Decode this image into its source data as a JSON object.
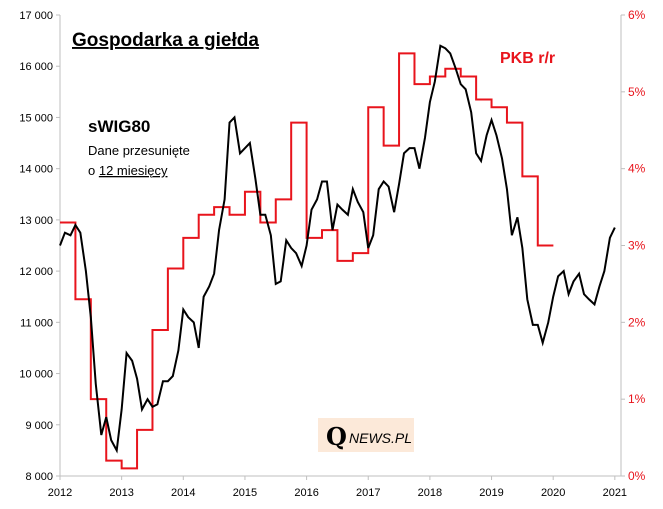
{
  "chart_data": {
    "type": "line",
    "title": "Gospodarka a giełda",
    "x_ticks": [
      "2012",
      "2013",
      "2014",
      "2015",
      "2016",
      "2017",
      "2018",
      "2019",
      "2020",
      "2021"
    ],
    "y_left": {
      "range": [
        8000,
        17000
      ],
      "ticks": [
        "8 000",
        "9 000",
        "10 000",
        "11 000",
        "12 000",
        "13 000",
        "14 000",
        "15 000",
        "16 000",
        "17 000"
      ]
    },
    "y_right": {
      "range": [
        0,
        6
      ],
      "ticks": [
        "0%",
        "1%",
        "2%",
        "3%",
        "4%",
        "5%",
        "6%"
      ]
    },
    "grid": false,
    "series": [
      {
        "name": "sWIG80",
        "axis": "left",
        "color": "#000000",
        "note": "Dane przesunięte o 12 miesięcy",
        "points": [
          [
            2012.0,
            12500
          ],
          [
            2012.08,
            12750
          ],
          [
            2012.17,
            12700
          ],
          [
            2012.25,
            12900
          ],
          [
            2012.33,
            12750
          ],
          [
            2012.42,
            12000
          ],
          [
            2012.5,
            11100
          ],
          [
            2012.58,
            9800
          ],
          [
            2012.67,
            8800
          ],
          [
            2012.75,
            9150
          ],
          [
            2012.83,
            8700
          ],
          [
            2012.92,
            8500
          ],
          [
            2013.0,
            9300
          ],
          [
            2013.08,
            10400
          ],
          [
            2013.17,
            10250
          ],
          [
            2013.25,
            9900
          ],
          [
            2013.33,
            9300
          ],
          [
            2013.42,
            9500
          ],
          [
            2013.5,
            9350
          ],
          [
            2013.58,
            9400
          ],
          [
            2013.67,
            9850
          ],
          [
            2013.75,
            9850
          ],
          [
            2013.83,
            9950
          ],
          [
            2013.92,
            10450
          ],
          [
            2014.0,
            11250
          ],
          [
            2014.08,
            11100
          ],
          [
            2014.17,
            11000
          ],
          [
            2014.25,
            10500
          ],
          [
            2014.33,
            11500
          ],
          [
            2014.42,
            11700
          ],
          [
            2014.5,
            11950
          ],
          [
            2014.58,
            12800
          ],
          [
            2014.67,
            13400
          ],
          [
            2014.75,
            14900
          ],
          [
            2014.83,
            15000
          ],
          [
            2014.92,
            14300
          ],
          [
            2015.0,
            14400
          ],
          [
            2015.08,
            14500
          ],
          [
            2015.17,
            13800
          ],
          [
            2015.25,
            13100
          ],
          [
            2015.33,
            13100
          ],
          [
            2015.42,
            12700
          ],
          [
            2015.5,
            11750
          ],
          [
            2015.58,
            11800
          ],
          [
            2015.67,
            12600
          ],
          [
            2015.75,
            12450
          ],
          [
            2015.83,
            12350
          ],
          [
            2015.92,
            12100
          ],
          [
            2016.0,
            12500
          ],
          [
            2016.08,
            13200
          ],
          [
            2016.17,
            13400
          ],
          [
            2016.25,
            13750
          ],
          [
            2016.33,
            13750
          ],
          [
            2016.42,
            12800
          ],
          [
            2016.5,
            13300
          ],
          [
            2016.58,
            13200
          ],
          [
            2016.67,
            13100
          ],
          [
            2016.75,
            13600
          ],
          [
            2016.83,
            13350
          ],
          [
            2016.92,
            13150
          ],
          [
            2017.0,
            12450
          ],
          [
            2017.08,
            12700
          ],
          [
            2017.17,
            13600
          ],
          [
            2017.25,
            13750
          ],
          [
            2017.33,
            13650
          ],
          [
            2017.42,
            13150
          ],
          [
            2017.5,
            13700
          ],
          [
            2017.58,
            14300
          ],
          [
            2017.67,
            14400
          ],
          [
            2017.75,
            14400
          ],
          [
            2017.83,
            14000
          ],
          [
            2017.92,
            14600
          ],
          [
            2018.0,
            15300
          ],
          [
            2018.08,
            15700
          ],
          [
            2018.17,
            16400
          ],
          [
            2018.25,
            16350
          ],
          [
            2018.33,
            16250
          ],
          [
            2018.42,
            15950
          ],
          [
            2018.5,
            15650
          ],
          [
            2018.58,
            15550
          ],
          [
            2018.67,
            15100
          ],
          [
            2018.75,
            14300
          ],
          [
            2018.83,
            14150
          ],
          [
            2018.92,
            14650
          ],
          [
            2019.0,
            14950
          ],
          [
            2019.08,
            14650
          ],
          [
            2019.17,
            14200
          ],
          [
            2019.25,
            13600
          ],
          [
            2019.33,
            12700
          ],
          [
            2019.42,
            13050
          ],
          [
            2019.5,
            12450
          ],
          [
            2019.58,
            11450
          ],
          [
            2019.67,
            10950
          ],
          [
            2019.75,
            10950
          ],
          [
            2019.83,
            10600
          ],
          [
            2019.92,
            11000
          ],
          [
            2020.0,
            11500
          ],
          [
            2020.08,
            11900
          ],
          [
            2020.17,
            12000
          ],
          [
            2020.25,
            11550
          ],
          [
            2020.33,
            11800
          ],
          [
            2020.42,
            11950
          ],
          [
            2020.5,
            11550
          ],
          [
            2020.58,
            11450
          ],
          [
            2020.67,
            11350
          ],
          [
            2020.75,
            11700
          ],
          [
            2020.83,
            12000
          ],
          [
            2020.92,
            12650
          ],
          [
            2021.0,
            12850
          ]
        ]
      },
      {
        "name": "PKB r/r",
        "axis": "right",
        "color": "#e8141c",
        "step": true,
        "points": [
          [
            2012.0,
            3.3
          ],
          [
            2012.25,
            2.3
          ],
          [
            2012.5,
            1.0
          ],
          [
            2012.75,
            0.2
          ],
          [
            2013.0,
            0.1
          ],
          [
            2013.25,
            0.6
          ],
          [
            2013.5,
            1.9
          ],
          [
            2013.75,
            2.7
          ],
          [
            2014.0,
            3.1
          ],
          [
            2014.25,
            3.4
          ],
          [
            2014.5,
            3.5
          ],
          [
            2014.75,
            3.4
          ],
          [
            2015.0,
            3.7
          ],
          [
            2015.25,
            3.3
          ],
          [
            2015.5,
            3.6
          ],
          [
            2015.75,
            4.6
          ],
          [
            2016.0,
            3.1
          ],
          [
            2016.25,
            3.2
          ],
          [
            2016.5,
            2.8
          ],
          [
            2016.75,
            2.9
          ],
          [
            2017.0,
            4.8
          ],
          [
            2017.25,
            4.3
          ],
          [
            2017.5,
            5.5
          ],
          [
            2017.75,
            5.1
          ],
          [
            2018.0,
            5.2
          ],
          [
            2018.25,
            5.3
          ],
          [
            2018.5,
            5.2
          ],
          [
            2018.75,
            4.9
          ],
          [
            2019.0,
            4.8
          ],
          [
            2019.25,
            4.6
          ],
          [
            2019.5,
            3.9
          ],
          [
            2019.75,
            3.0
          ],
          [
            2019.92,
            3.0
          ]
        ]
      }
    ]
  },
  "labels": {
    "title": "Gospodarka a giełda",
    "swig_title": "sWIG80",
    "swig_note_1": "Dane przesunięte",
    "swig_note_2_prefix": "o ",
    "swig_note_2_underlined": "12 miesięcy",
    "pkb_title": "PKB r/r"
  },
  "logo": {
    "letter": "Q",
    "text": "NEWS.PL",
    "bg_color": "#fce9d9"
  }
}
